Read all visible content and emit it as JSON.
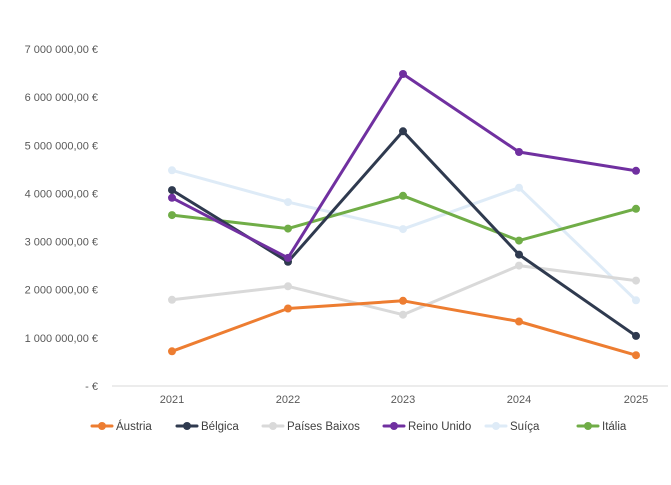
{
  "chart_data": {
    "type": "line",
    "title": "",
    "xlabel": "",
    "ylabel": "",
    "categories": [
      "2021",
      "2022",
      "2023",
      "2024",
      "2025"
    ],
    "ylim": [
      0,
      7000000
    ],
    "y_ticks": [
      {
        "value": 0,
        "label": "-  €"
      },
      {
        "value": 1000000,
        "label": "1 000 000,00 €"
      },
      {
        "value": 2000000,
        "label": "2 000 000,00 €"
      },
      {
        "value": 3000000,
        "label": "3 000 000,00 €"
      },
      {
        "value": 4000000,
        "label": "4 000 000,00 €"
      },
      {
        "value": 5000000,
        "label": "5 000 000,00 €"
      },
      {
        "value": 6000000,
        "label": "6 000 000,00 €"
      },
      {
        "value": 7000000,
        "label": "7 000 000,00 €"
      }
    ],
    "grid": false,
    "legend_position": "bottom",
    "series": [
      {
        "name": "Suíça",
        "color": "#deebf7",
        "values": [
          4480000,
          3820000,
          3260000,
          4120000,
          1780000
        ]
      },
      {
        "name": "Países Baixos",
        "color": "#d9d9d9",
        "values": [
          1790000,
          2070000,
          1480000,
          2500000,
          2190000
        ]
      },
      {
        "name": "Áustria",
        "color": "#ed7d31",
        "values": [
          720000,
          1610000,
          1770000,
          1340000,
          640000
        ]
      },
      {
        "name": "Itália",
        "color": "#70ad47",
        "values": [
          3550000,
          3270000,
          3950000,
          3020000,
          3680000
        ]
      },
      {
        "name": "Bélgica",
        "color": "#2f3a4f",
        "values": [
          4070000,
          2580000,
          5290000,
          2730000,
          1040000
        ]
      },
      {
        "name": "Reino Unido",
        "color": "#7030a0",
        "values": [
          3910000,
          2660000,
          6480000,
          4860000,
          4470000
        ]
      }
    ],
    "legend": [
      {
        "name": "Áustria",
        "color": "#ed7d31"
      },
      {
        "name": "Bélgica",
        "color": "#2f3a4f"
      },
      {
        "name": "Países Baixos",
        "color": "#d9d9d9"
      },
      {
        "name": "Reino Unido",
        "color": "#7030a0"
      },
      {
        "name": "Suíça",
        "color": "#deebf7"
      },
      {
        "name": "Itália",
        "color": "#70ad47"
      }
    ]
  }
}
